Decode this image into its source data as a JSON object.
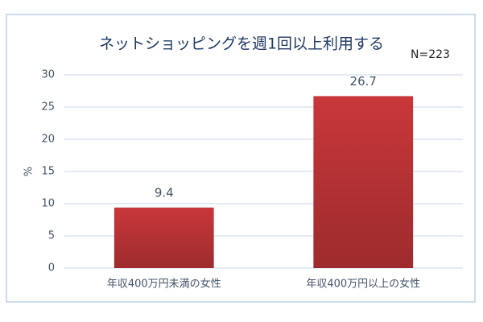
{
  "chart_data": {
    "type": "bar",
    "title": "ネットショッピングを週1回以上利用する",
    "annotation": "N=223",
    "y_label": "%",
    "categories": [
      "年収400万円未満の女性",
      "年収400万円以上の女性"
    ],
    "values": [
      9.4,
      26.7
    ],
    "color": "#c9373a",
    "ylim": [
      0,
      30
    ],
    "yticks": [
      0,
      5,
      10,
      15,
      20,
      25,
      30
    ],
    "grid": true
  }
}
